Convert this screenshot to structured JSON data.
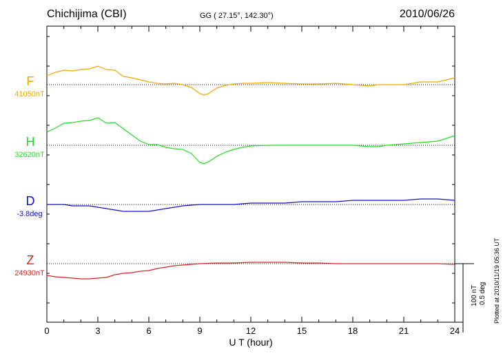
{
  "header": {
    "station": "Chichijima (CBI)",
    "coords": "GG ( 27.15°, 142.30°)",
    "date": "2010/06/26"
  },
  "scale": {
    "nt": "100 nT",
    "deg": "0.5 deg"
  },
  "plotted_note": "Plotted at 2010/11/19 05:36 UT",
  "chart_data": {
    "type": "line",
    "xlabel": "U T (hour)",
    "xlim": [
      0,
      24
    ],
    "xticks": [
      "0",
      "3",
      "6",
      "9",
      "12",
      "15",
      "18",
      "21",
      "24"
    ],
    "grid": "dotted baselines",
    "series": [
      {
        "name": "F",
        "baseline_label": "41050nT",
        "color": "#f0a800",
        "baseline_nT": 41050,
        "x": [
          0,
          0.5,
          1,
          1.5,
          2,
          2.5,
          3,
          3.5,
          4,
          4.5,
          5,
          5.5,
          6,
          6.5,
          7,
          7.5,
          8,
          8.5,
          9,
          9.25,
          9.5,
          10,
          10.5,
          11,
          11.5,
          12,
          13,
          14,
          15,
          16,
          17,
          18,
          18.5,
          19,
          19.5,
          20,
          21,
          22,
          23,
          24
        ],
        "y": [
          41063,
          41068,
          41071,
          41070,
          41072,
          41073,
          41077,
          41072,
          41071,
          41062,
          41060,
          41057,
          41054,
          41052,
          41051,
          41052,
          41050,
          41046,
          41037,
          41035,
          41037,
          41045,
          41049,
          41051,
          41052,
          41052,
          41053,
          41052,
          41051,
          41051,
          41052,
          41050,
          41049,
          41048,
          41050,
          41050,
          41050,
          41054,
          41054,
          41060
        ]
      },
      {
        "name": "H",
        "baseline_label": "32620nT",
        "color": "#22dd22",
        "baseline_nT": 32620,
        "x": [
          0,
          0.5,
          1,
          1.5,
          2,
          2.5,
          3,
          3.5,
          4,
          4.5,
          5,
          5.5,
          6,
          6.5,
          7,
          7.5,
          8,
          8.5,
          9,
          9.25,
          9.5,
          10,
          10.5,
          11,
          11.5,
          12,
          13,
          14,
          15,
          16,
          17,
          18,
          18.5,
          19,
          19.5,
          20,
          21,
          22,
          23,
          24
        ],
        "y": [
          32639,
          32645,
          32652,
          32653,
          32655,
          32656,
          32660,
          32652,
          32653,
          32644,
          32635,
          32626,
          32621,
          32621,
          32617,
          32615,
          32614,
          32608,
          32595,
          32593,
          32596,
          32604,
          32610,
          32614,
          32617,
          32619,
          32620,
          32620,
          32620,
          32620,
          32620,
          32620,
          32619,
          32618,
          32618,
          32620,
          32622,
          32624,
          32626,
          32634
        ]
      },
      {
        "name": "D",
        "baseline_label": "-3.8deg",
        "color": "#1010c0",
        "baseline_deg": -3.8,
        "x": [
          0,
          0.5,
          1,
          1.5,
          2,
          2.5,
          3,
          3.5,
          4,
          4.5,
          5,
          5.5,
          6,
          6.5,
          7,
          7.5,
          8,
          9,
          10,
          11,
          12,
          13,
          14,
          15,
          16,
          17,
          18,
          19,
          20,
          21,
          22,
          23,
          24
        ],
        "y": [
          -3.8,
          -3.8,
          -3.8,
          -3.81,
          -3.81,
          -3.81,
          -3.82,
          -3.83,
          -3.84,
          -3.85,
          -3.85,
          -3.85,
          -3.85,
          -3.84,
          -3.83,
          -3.82,
          -3.81,
          -3.8,
          -3.8,
          -3.8,
          -3.79,
          -3.79,
          -3.79,
          -3.78,
          -3.78,
          -3.78,
          -3.77,
          -3.77,
          -3.77,
          -3.77,
          -3.76,
          -3.76,
          -3.77
        ]
      },
      {
        "name": "Z",
        "baseline_label": "24930nT",
        "color": "#dd2222",
        "baseline_nT": 24930,
        "x": [
          0,
          0.5,
          1,
          1.5,
          2,
          2.5,
          3,
          3.5,
          4,
          4.5,
          5,
          5.5,
          6,
          6.5,
          7,
          7.5,
          8,
          8.5,
          9,
          10,
          11,
          12,
          12.5,
          13,
          13.5,
          14,
          15,
          16,
          17,
          18,
          19,
          20,
          21,
          22,
          23,
          24
        ],
        "y": [
          24913,
          24911,
          24910,
          24909,
          24908,
          24908,
          24909,
          24910,
          24914,
          24916,
          24917,
          24919,
          24920,
          24923,
          24925,
          24927,
          24928,
          24929,
          24930,
          24931,
          24931,
          24932,
          24932,
          24932,
          24932,
          24932,
          24931,
          24931,
          24930,
          24930,
          24930,
          24930,
          24930,
          24930,
          24930,
          24929
        ]
      }
    ]
  }
}
